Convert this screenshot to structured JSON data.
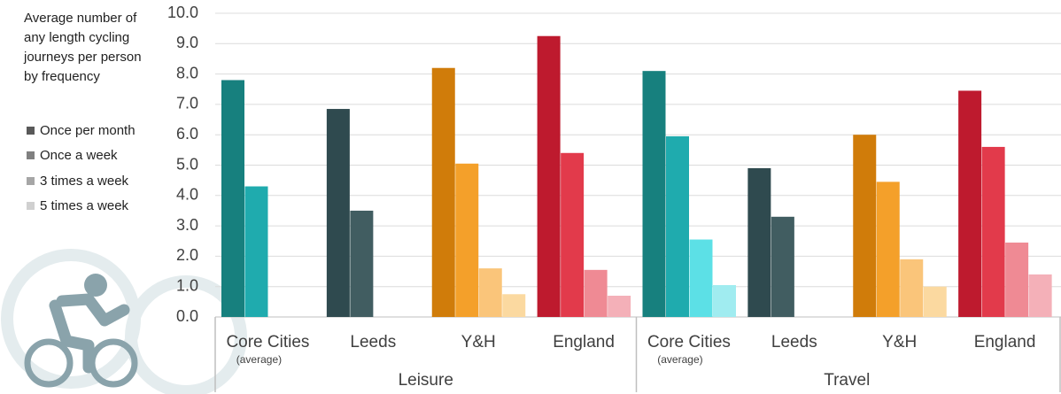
{
  "chart_data": {
    "type": "bar",
    "title": "Average number of any length cycling journeys per person by frequency",
    "groups": [
      {
        "label": "Leisure",
        "categories": [
          {
            "label": "Core Cities",
            "note": "(average)"
          },
          {
            "label": "Leeds"
          },
          {
            "label": "Y&H"
          },
          {
            "label": "England"
          }
        ]
      },
      {
        "label": "Travel",
        "categories": [
          {
            "label": "Core Cities",
            "note": "(average)"
          },
          {
            "label": "Leeds"
          },
          {
            "label": "Y&H"
          },
          {
            "label": "England"
          }
        ]
      }
    ],
    "series": [
      {
        "name": "Once per month",
        "color": "#595959",
        "values": [
          7.8,
          6.85,
          8.2,
          9.25,
          8.1,
          4.9,
          6.0,
          7.45
        ],
        "bar_colors": [
          "#17807e",
          "#2f4a4f",
          "#d07c0a",
          "#be1a2e",
          "#17807e",
          "#2f4a4f",
          "#d07c0a",
          "#be1a2e"
        ]
      },
      {
        "name": "Once a week",
        "color": "#808080",
        "values": [
          4.3,
          3.5,
          5.05,
          5.4,
          5.95,
          3.3,
          4.45,
          5.6
        ],
        "bar_colors": [
          "#1fabae",
          "#415d61",
          "#f4a02a",
          "#e23a4b",
          "#1fabae",
          "#415d61",
          "#f4a02a",
          "#e23a4b"
        ]
      },
      {
        "name": "3 times a week",
        "color": "#a6a6a6",
        "values": [
          null,
          null,
          1.6,
          1.55,
          2.55,
          null,
          1.9,
          2.45
        ],
        "bar_colors": [
          null,
          null,
          "#fac57a",
          "#ef8a94",
          "#5ce0e6",
          null,
          "#fac57a",
          "#ef8a94"
        ]
      },
      {
        "name": "5 times a week",
        "color": "#d0d0d0",
        "values": [
          null,
          null,
          0.75,
          0.7,
          1.05,
          null,
          1.0,
          1.4
        ],
        "bar_colors": [
          null,
          null,
          "#fbd9a0",
          "#f4b0b8",
          "#a0ecf0",
          null,
          "#fbd9a0",
          "#f4b0b8"
        ]
      }
    ],
    "ylim": [
      0,
      10
    ],
    "yticks": [
      {
        "value": 0,
        "label": "0.0"
      },
      {
        "value": 1,
        "label": "1.0"
      },
      {
        "value": 2,
        "label": "2.0"
      },
      {
        "value": 3,
        "label": "3.0"
      },
      {
        "value": 4,
        "label": "4.0"
      },
      {
        "value": 5,
        "label": "5.0"
      },
      {
        "value": 6,
        "label": "6.0"
      },
      {
        "value": 7,
        "label": "7.0"
      },
      {
        "value": 8,
        "label": "8.0"
      },
      {
        "value": 9,
        "label": "9.0"
      },
      {
        "value": 10,
        "label": "10.0"
      }
    ],
    "grid": true
  }
}
